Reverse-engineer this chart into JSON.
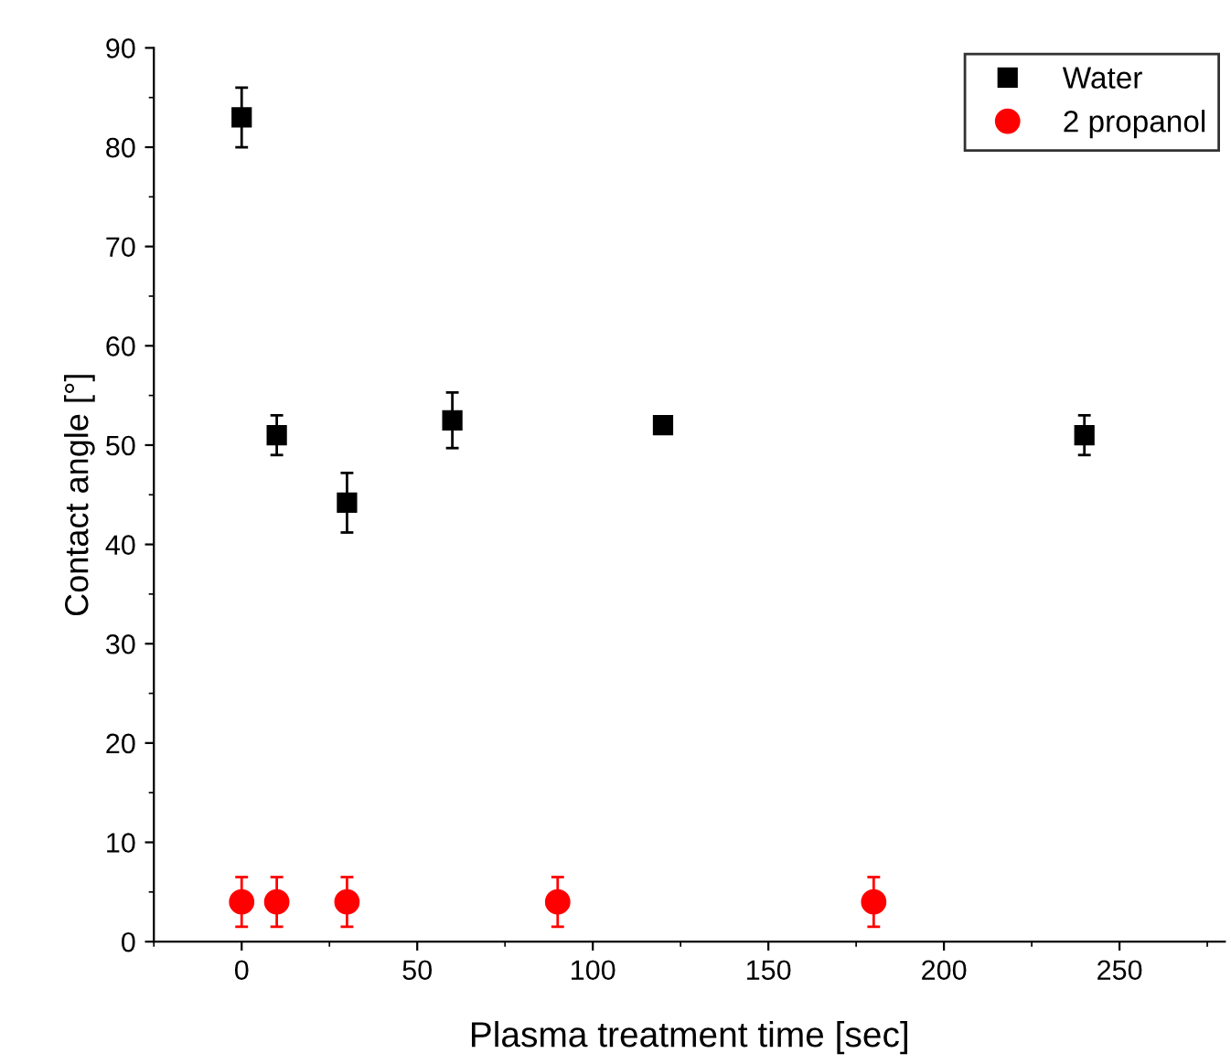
{
  "chart_data": {
    "type": "scatter",
    "xlabel": "Plasma treatment time [sec]",
    "ylabel": "Contact angle [°]",
    "xlim": [
      -25,
      280
    ],
    "ylim": [
      0,
      90
    ],
    "xticks": [
      0,
      50,
      100,
      150,
      200,
      250
    ],
    "yticks": [
      0,
      10,
      20,
      30,
      40,
      50,
      60,
      70,
      80,
      90
    ],
    "grid": false,
    "legend": "top right",
    "series": [
      {
        "name": "Water",
        "color": "#000000",
        "marker": "square",
        "x": [
          0,
          10,
          30,
          60,
          120,
          240
        ],
        "values": [
          83,
          51,
          44.2,
          52.5,
          52,
          51
        ],
        "errors": [
          3,
          2,
          3,
          2.8,
          0.5,
          2
        ]
      },
      {
        "name": "2 propanol",
        "color": "#ff0000",
        "marker": "circle",
        "x": [
          0,
          10,
          30,
          90,
          180
        ],
        "values": [
          4,
          4,
          4,
          4,
          4
        ],
        "errors": [
          2.5,
          2.5,
          2.5,
          2.5,
          2.5
        ]
      }
    ]
  }
}
